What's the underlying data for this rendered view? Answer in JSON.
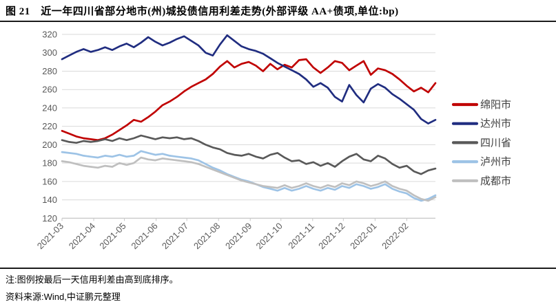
{
  "figure": {
    "title": "图 21　近一年四川省部分地市(州)城投债信用利差走势(外部评级 AA+债项,单位:bp)",
    "note": "注:图例按最后一天信用利差由高到底排序。",
    "source": "资料来源:Wind,中证鹏元整理"
  },
  "colors": {
    "grid": "#D9D9D9",
    "axis": "#C6C6C6",
    "tick_text": "#595959",
    "legend_text": "#404040",
    "rule": "#1a1a1a"
  },
  "chart_data": {
    "type": "line",
    "title": "近一年四川省部分地市(州)城投债信用利差走势(外部评级 AA+债项,单位:bp)",
    "xlabel": "",
    "ylabel": "bp",
    "ylim": [
      120,
      320
    ],
    "y_ticks": [
      320,
      300,
      280,
      260,
      240,
      220,
      200,
      180,
      160,
      140,
      120
    ],
    "x_labels": [
      "2021-03",
      "2021-04",
      "2021-05",
      "2021-06",
      "2021-07",
      "2021-08",
      "2021-09",
      "2021-10",
      "2021-11",
      "2021-12",
      "2022-01",
      "2022-02"
    ],
    "month_day_offsets": [
      0,
      31,
      61,
      92,
      122,
      153,
      184,
      214,
      245,
      275,
      306,
      337
    ],
    "days_total": 365,
    "grid": true,
    "legend_position": "right",
    "sampling": "weekly, 53 points from 2021-03 to 2022-02, values in bp",
    "series": [
      {
        "name": "绵阳市",
        "color": "#C00000",
        "values": [
          215,
          212,
          209,
          207,
          206,
          205,
          207,
          211,
          216,
          221,
          227,
          225,
          230,
          236,
          243,
          247,
          252,
          258,
          263,
          267,
          271,
          277,
          285,
          291,
          284,
          288,
          290,
          286,
          280,
          288,
          282,
          287,
          284,
          292,
          293,
          284,
          278,
          284,
          291,
          289,
          281,
          286,
          291,
          276,
          283,
          281,
          277,
          271,
          264,
          258,
          262,
          257,
          267
        ]
      },
      {
        "name": "达州市",
        "color": "#202D80",
        "values": [
          293,
          297,
          301,
          304,
          301,
          303,
          306,
          303,
          307,
          310,
          306,
          311,
          317,
          312,
          308,
          311,
          315,
          318,
          313,
          308,
          300,
          297,
          309,
          319,
          313,
          307,
          304,
          302,
          299,
          294,
          289,
          285,
          281,
          277,
          271,
          263,
          267,
          262,
          252,
          247,
          265,
          254,
          246,
          261,
          266,
          262,
          255,
          250,
          244,
          238,
          228,
          223,
          227
        ]
      },
      {
        "name": "四川省",
        "color": "#595959",
        "values": [
          205,
          203,
          202,
          204,
          203,
          204,
          206,
          204,
          207,
          205,
          207,
          210,
          208,
          206,
          208,
          207,
          208,
          206,
          207,
          204,
          200,
          197,
          195,
          191,
          189,
          188,
          190,
          187,
          185,
          189,
          191,
          186,
          182,
          183,
          179,
          181,
          177,
          180,
          176,
          182,
          187,
          190,
          184,
          182,
          188,
          185,
          179,
          175,
          177,
          171,
          168,
          172,
          174
        ]
      },
      {
        "name": "泸州市",
        "color": "#9DC3E6",
        "values": [
          192,
          191,
          190,
          188,
          187,
          186,
          188,
          187,
          189,
          187,
          188,
          193,
          191,
          189,
          190,
          188,
          187,
          186,
          185,
          183,
          179,
          175,
          172,
          168,
          165,
          162,
          160,
          157,
          154,
          152,
          150,
          153,
          150,
          152,
          155,
          152,
          150,
          153,
          151,
          155,
          153,
          157,
          155,
          152,
          154,
          157,
          152,
          149,
          147,
          142,
          139,
          141,
          145
        ]
      },
      {
        "name": "成都市",
        "color": "#BFBFBF",
        "values": [
          182,
          181,
          179,
          177,
          176,
          175,
          177,
          176,
          180,
          178,
          180,
          186,
          184,
          183,
          185,
          184,
          183,
          182,
          181,
          179,
          176,
          173,
          170,
          167,
          164,
          161,
          159,
          157,
          155,
          154,
          153,
          156,
          153,
          155,
          158,
          155,
          153,
          156,
          154,
          158,
          156,
          160,
          158,
          155,
          157,
          160,
          155,
          152,
          150,
          145,
          141,
          139,
          143
        ]
      }
    ]
  }
}
